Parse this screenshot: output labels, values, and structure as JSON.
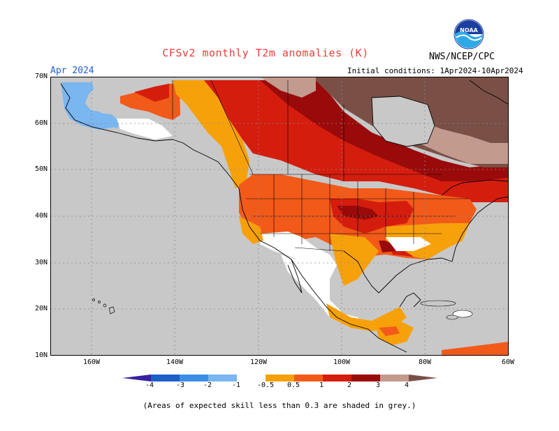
{
  "title": "CFSv2 monthly T2m anomalies (K)",
  "credit": "NWS/NCEP/CPC",
  "logo_text": "NOAA",
  "month": "Apr 2024",
  "initial_conditions": "Initial conditions: 1Apr2024-10Apr2024",
  "lat_labels": [
    "70N",
    "60N",
    "50N",
    "40N",
    "30N",
    "20N",
    "10N"
  ],
  "lon_labels": [
    "160W",
    "140W",
    "120W",
    "100W",
    "80W",
    "60W"
  ],
  "legend": {
    "labels": [
      "-4",
      "-3",
      "-2",
      "-1",
      "-0.5",
      "0.5",
      "1",
      "2",
      "3",
      "4"
    ],
    "colors": [
      "#3a1f9e",
      "#1c5fc8",
      "#3a8ee8",
      "#7ab6f0",
      "#ffffff",
      "#f7a10a",
      "#f25a1a",
      "#d51d0e",
      "#9a0a0a",
      "#c39a8e",
      "#7a5046"
    ]
  },
  "note": "(Areas of expected skill less than 0.3 are shaded in grey.)",
  "colors": {
    "ocean_grey": "#c8c8c8",
    "title_red": "#e8403a",
    "month_blue": "#1f5fd6"
  }
}
